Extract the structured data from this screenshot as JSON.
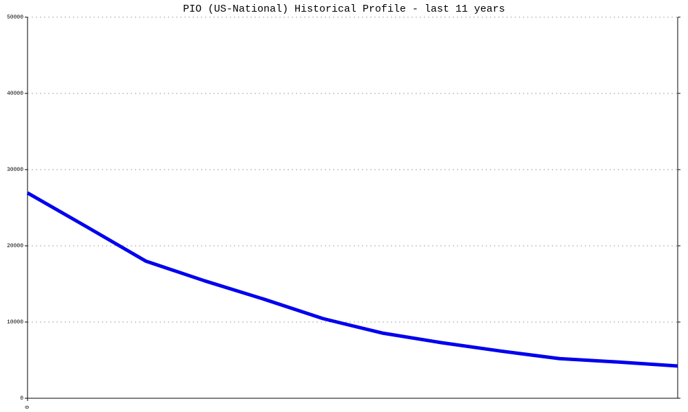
{
  "chart_data": {
    "type": "line",
    "title": "PIO (US-National) Historical Profile - last 11 years",
    "x": [
      0,
      1,
      2,
      3,
      4,
      5,
      6,
      7,
      8,
      9,
      10,
      11
    ],
    "series": [
      {
        "color": "#0000ee",
        "values": [
          26940,
          22500,
          18000,
          15400,
          13000,
          10450,
          8560,
          7300,
          6200,
          5200,
          4750,
          4230
        ]
      }
    ],
    "xlim": [
      0,
      11
    ],
    "xticks": [
      0
    ],
    "ylim": [
      0,
      50000
    ],
    "yticks": [
      0,
      10000,
      20000,
      30000,
      40000,
      50000
    ],
    "grid": true
  }
}
